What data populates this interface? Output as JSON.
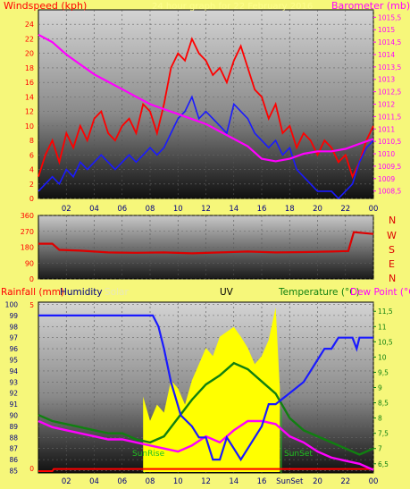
{
  "colors": {
    "page_bg": "#f6f77a",
    "wind": "#ff0000",
    "gust_avg": "#1a1aff",
    "barometer": "#ff00ff",
    "direction": "#dd0000",
    "humidity": "#1a1aff",
    "temperature": "#108010",
    "dew": "#ff00ff",
    "uv": "#ffff00",
    "rain": "#ff0000",
    "label_blue": "#000080",
    "solar_label": "#e0e0b0"
  },
  "header": {
    "windspeed": "Windspeed (kph)",
    "faint_title": "24 hour graph for 22 February 2016",
    "barometer": "Barometer (mb)"
  },
  "middle": {
    "compass": [
      "N",
      "W",
      "S",
      "E",
      "N"
    ]
  },
  "bottom_header": {
    "rainfall": "Rainfall (mm)",
    "humidity": "Humidity",
    "solar": "Solar",
    "uv": "UV",
    "temperature": "Temperature (°C)",
    "dew": "Dew Point (°C)"
  },
  "annotations": {
    "sunrise": "SunRise",
    "sunset": "SunSet"
  },
  "chart_data": [
    {
      "type": "line",
      "title": "Windspeed and Barometer",
      "x_ticks": [
        "02",
        "04",
        "06",
        "08",
        "10",
        "12",
        "14",
        "16",
        "18",
        "20",
        "22",
        "00"
      ],
      "x_range": [
        0,
        24
      ],
      "ylabel": "Windspeed (kph)",
      "ylim": [
        0,
        26
      ],
      "y_ticks": [
        "0",
        "2",
        "4",
        "6",
        "8",
        "10",
        "12",
        "14",
        "16",
        "18",
        "20",
        "22",
        "24"
      ],
      "y2label": "Barometer (mb)",
      "y2lim": [
        1008.2,
        1015.8
      ],
      "y2_ticks": [
        "1008,5",
        "1009",
        "1009,5",
        "1010",
        "1010,5",
        "1011",
        "1011,5",
        "1012",
        "1012,5",
        "1013",
        "1013,5",
        "1014",
        "1014,5",
        "1015",
        "1015,5"
      ],
      "series": [
        {
          "name": "Windspeed",
          "axis": "left",
          "x": [
            0,
            0.5,
            1,
            1.5,
            2,
            2.5,
            3,
            3.5,
            4,
            4.5,
            5,
            5.5,
            6,
            6.5,
            7,
            7.5,
            8,
            8.5,
            9,
            9.5,
            10,
            10.5,
            11,
            11.5,
            12,
            12.5,
            13,
            13.5,
            14,
            14.5,
            15,
            15.5,
            16,
            16.5,
            17,
            17.5,
            18,
            18.5,
            19,
            19.5,
            20,
            20.5,
            21,
            21.5,
            22,
            22.5,
            23,
            23.5,
            24
          ],
          "y": [
            3,
            6,
            8,
            5,
            9,
            7,
            10,
            8,
            11,
            12,
            9,
            8,
            10,
            11,
            9,
            13,
            12,
            9,
            13,
            18,
            20,
            19,
            22,
            20,
            19,
            17,
            18,
            16,
            19,
            21,
            18,
            15,
            14,
            11,
            13,
            9,
            10,
            7,
            9,
            8,
            6,
            8,
            7,
            5,
            6,
            3,
            5,
            8,
            10
          ]
        },
        {
          "name": "Average",
          "axis": "left",
          "x": [
            0,
            0.5,
            1,
            1.5,
            2,
            2.5,
            3,
            3.5,
            4,
            4.5,
            5,
            5.5,
            6,
            6.5,
            7,
            7.5,
            8,
            8.5,
            9,
            9.5,
            10,
            10.5,
            11,
            11.5,
            12,
            12.5,
            13,
            13.5,
            14,
            14.5,
            15,
            15.5,
            16,
            16.5,
            17,
            17.5,
            18,
            18.5,
            19,
            19.5,
            20,
            20.5,
            21,
            21.5,
            22,
            22.5,
            23,
            23.5,
            24
          ],
          "y": [
            1,
            2,
            3,
            2,
            4,
            3,
            5,
            4,
            5,
            6,
            5,
            4,
            5,
            6,
            5,
            6,
            7,
            6,
            7,
            9,
            11,
            12,
            14,
            11,
            12,
            11,
            10,
            9,
            13,
            12,
            11,
            9,
            8,
            7,
            8,
            6,
            7,
            4,
            3,
            2,
            1,
            1,
            1,
            0,
            1,
            2,
            5,
            7,
            8
          ]
        },
        {
          "name": "Barometer",
          "axis": "right",
          "x": [
            0,
            1,
            2,
            3,
            4,
            5,
            6,
            7,
            8,
            9,
            10,
            11,
            12,
            13,
            14,
            15,
            16,
            17,
            18,
            19,
            20,
            21,
            22,
            23,
            24
          ],
          "y": [
            1014.8,
            1014.5,
            1014.0,
            1013.6,
            1013.2,
            1012.9,
            1012.6,
            1012.3,
            1012.0,
            1011.8,
            1011.6,
            1011.4,
            1011.2,
            1010.9,
            1010.6,
            1010.3,
            1009.8,
            1009.7,
            1009.8,
            1010.0,
            1010.1,
            1010.1,
            1010.2,
            1010.4,
            1010.6
          ]
        }
      ]
    },
    {
      "type": "line",
      "title": "Wind Direction",
      "x_range": [
        0,
        24
      ],
      "ylim": [
        0,
        360
      ],
      "y_ticks": [
        "0",
        "90",
        "180",
        "270",
        "360"
      ],
      "series": [
        {
          "name": "Direction",
          "x": [
            0,
            1,
            1.5,
            3,
            5,
            7,
            9,
            11,
            13,
            15,
            17,
            19,
            21,
            22.2,
            22.6,
            24
          ],
          "y": [
            200,
            200,
            165,
            160,
            150,
            148,
            150,
            145,
            150,
            155,
            150,
            152,
            155,
            158,
            265,
            255
          ]
        }
      ]
    },
    {
      "type": "line",
      "title": "Temperature, Humidity, Rain, UV",
      "x_ticks": [
        "02",
        "04",
        "06",
        "08",
        "10",
        "12",
        "14",
        "16",
        "SunSet",
        "20",
        "22",
        "00"
      ],
      "x_range": [
        0,
        24
      ],
      "y_left_ticks": [
        "85",
        "86",
        "87",
        "88",
        "89",
        "90",
        "91",
        "92",
        "93",
        "94",
        "95",
        "96",
        "97",
        "98",
        "99",
        "100"
      ],
      "ylim_humidity": [
        84.8,
        100.2
      ],
      "rain_ticks": [
        "0",
        "5"
      ],
      "y2_ticks": [
        "6,5",
        "7",
        "7,5",
        "8",
        "8,5",
        "9",
        "9,5",
        "10",
        "10,5",
        "11",
        "11,5"
      ],
      "y2lim": [
        6.2,
        11.8
      ],
      "sunrise_hour": 7.6,
      "sunset_hour": 17.4,
      "series": [
        {
          "name": "Humidity",
          "axis": "left",
          "x": [
            0,
            8.2,
            8.6,
            9.0,
            9.5,
            10.2,
            11.0,
            11.5,
            12.0,
            12.5,
            13.0,
            13.5,
            14.0,
            14.5,
            15.0,
            15.5,
            16.0,
            16.5,
            17.0,
            18.0,
            19.0,
            19.5,
            20.0,
            20.5,
            21.0,
            21.5,
            22.0,
            22.5,
            22.8,
            23.0,
            24.0
          ],
          "y": [
            99,
            99,
            98,
            96,
            93,
            90,
            89,
            88,
            88,
            86,
            86,
            88,
            87,
            86,
            87,
            88,
            89,
            91,
            91,
            92,
            93,
            94,
            95,
            96,
            96,
            97,
            97,
            97,
            96,
            97,
            97
          ]
        },
        {
          "name": "Temperature",
          "axis": "right",
          "x": [
            0,
            1,
            2,
            3,
            4,
            5,
            6,
            7,
            8,
            9,
            10,
            11,
            12,
            13,
            14,
            15,
            16,
            17,
            18,
            19,
            20,
            21,
            22,
            23,
            24
          ],
          "y": [
            8.1,
            7.9,
            7.8,
            7.7,
            7.6,
            7.5,
            7.5,
            7.3,
            7.2,
            7.4,
            8.0,
            8.6,
            9.1,
            9.4,
            9.8,
            9.6,
            9.2,
            8.8,
            8.0,
            7.6,
            7.4,
            7.2,
            7.0,
            6.8,
            7.0
          ]
        },
        {
          "name": "Dew Point",
          "axis": "right",
          "x": [
            0,
            1,
            2,
            3,
            4,
            5,
            6,
            7,
            8,
            9,
            10,
            11,
            12,
            13,
            14,
            15,
            16,
            17,
            18,
            19,
            20,
            21,
            22,
            23,
            24
          ],
          "y": [
            7.9,
            7.7,
            7.6,
            7.5,
            7.4,
            7.3,
            7.3,
            7.2,
            7.1,
            7.0,
            6.9,
            7.1,
            7.4,
            7.2,
            7.6,
            7.9,
            7.9,
            7.8,
            7.4,
            7.2,
            6.9,
            6.7,
            6.6,
            6.5,
            6.3
          ]
        },
        {
          "name": "UV",
          "axis": "uv",
          "x": [
            7.5,
            8.0,
            8.5,
            9.0,
            9.5,
            10.0,
            10.5,
            11.0,
            11.5,
            12.0,
            12.5,
            13.0,
            13.5,
            14.0,
            14.5,
            15.0,
            15.5,
            16.0,
            16.5,
            17.0,
            17.3
          ],
          "y": [
            0.45,
            0.3,
            0.4,
            0.35,
            0.55,
            0.5,
            0.4,
            0.55,
            0.65,
            0.75,
            0.7,
            0.82,
            0.85,
            0.88,
            0.82,
            0.75,
            0.65,
            0.7,
            0.8,
            1.0,
            0.5
          ]
        },
        {
          "name": "Rainfall",
          "axis": "rain",
          "x": [
            0,
            1.0,
            1.1,
            24
          ],
          "y": [
            0,
            0,
            0.3,
            0.3
          ]
        }
      ]
    }
  ]
}
